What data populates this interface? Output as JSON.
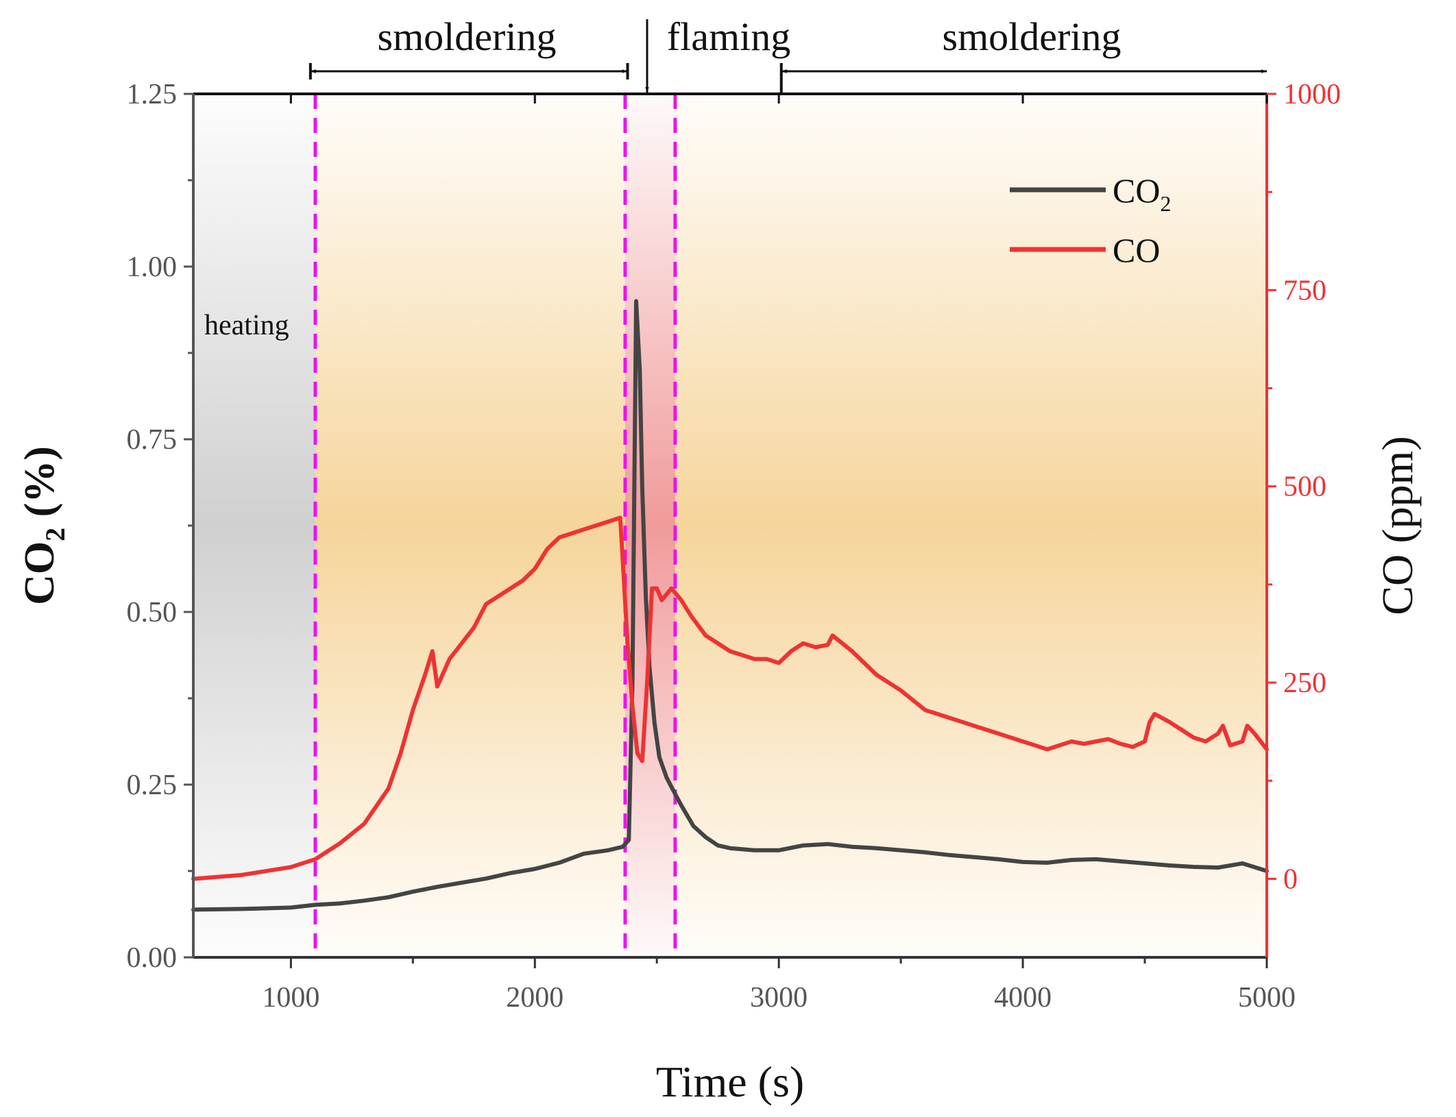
{
  "chart_data": {
    "type": "line",
    "xlabel": "Time (s)",
    "ylabel_left": {
      "base": "CO",
      "sub": "2",
      "unit": " (%)"
    },
    "ylabel_right": "CO (ppm)",
    "xlim": [
      600,
      5000
    ],
    "ylim_left": [
      0,
      1.25
    ],
    "ylim_right": [
      -100,
      1000
    ],
    "x_ticks": [
      1000,
      2000,
      3000,
      4000,
      5000
    ],
    "x_tick_labels": [
      "1000",
      "2000",
      "3000",
      "4000",
      "5000"
    ],
    "y_left_ticks": [
      0,
      0.25,
      0.5,
      0.75,
      1.0,
      1.25
    ],
    "y_left_tick_labels": [
      "0.00",
      "0.25",
      "0.50",
      "0.75",
      "1.00",
      "1.25"
    ],
    "y_right_ticks": [
      0,
      250,
      500,
      750,
      1000
    ],
    "y_right_tick_labels": [
      "0",
      "250",
      "500",
      "750",
      "1000"
    ],
    "regions": [
      {
        "name": "heating",
        "x_start": 600,
        "x_end": 1100,
        "color": "#d0d0d0"
      },
      {
        "name": "smoldering",
        "x_start": 1100,
        "x_end": 2370,
        "color": "#f5d090"
      },
      {
        "name": "flaming",
        "x_start": 2370,
        "x_end": 2575,
        "color": "#f09595"
      },
      {
        "name": "smoldering",
        "x_start": 2575,
        "x_end": 5000,
        "color": "#f5d090"
      }
    ],
    "dashed_lines_x": [
      1100,
      2370,
      2575
    ],
    "annotations": {
      "heating": "heating",
      "smoldering_1": "smoldering",
      "flaming": "flaming",
      "smoldering_2": "smoldering",
      "smoldering_1_arrow": [
        1080,
        2380
      ],
      "flaming_marker_x": 2460,
      "smoldering_2_arrow": [
        3010,
        5000
      ]
    },
    "legend": [
      {
        "name": "CO",
        "sub": "2",
        "color": "#444444"
      },
      {
        "name": "CO",
        "sub": "",
        "color": "#ee3333"
      }
    ],
    "series": [
      {
        "name": "CO2",
        "axis": "left",
        "color": "#444444",
        "x": [
          600,
          800,
          1000,
          1100,
          1200,
          1300,
          1400,
          1500,
          1600,
          1700,
          1800,
          1900,
          2000,
          2100,
          2200,
          2300,
          2360,
          2385,
          2400,
          2415,
          2430,
          2440,
          2455,
          2470,
          2490,
          2510,
          2540,
          2570,
          2600,
          2650,
          2700,
          2750,
          2800,
          2900,
          3000,
          3100,
          3200,
          3300,
          3400,
          3500,
          3600,
          3700,
          3800,
          3900,
          4000,
          4100,
          4200,
          4300,
          4400,
          4500,
          4600,
          4700,
          4800,
          4900,
          5000
        ],
        "values": [
          0.069,
          0.07,
          0.072,
          0.076,
          0.078,
          0.082,
          0.087,
          0.095,
          0.102,
          0.108,
          0.114,
          0.122,
          0.128,
          0.137,
          0.15,
          0.155,
          0.16,
          0.17,
          0.4,
          0.95,
          0.85,
          0.68,
          0.52,
          0.42,
          0.34,
          0.29,
          0.26,
          0.24,
          0.22,
          0.19,
          0.174,
          0.162,
          0.158,
          0.155,
          0.155,
          0.162,
          0.164,
          0.16,
          0.158,
          0.155,
          0.152,
          0.148,
          0.145,
          0.142,
          0.138,
          0.137,
          0.141,
          0.142,
          0.139,
          0.136,
          0.133,
          0.131,
          0.13,
          0.136,
          0.125
        ]
      },
      {
        "name": "CO",
        "axis": "right",
        "color": "#ee3333",
        "x": [
          600,
          800,
          1000,
          1100,
          1200,
          1300,
          1400,
          1450,
          1500,
          1550,
          1580,
          1600,
          1650,
          1700,
          1750,
          1800,
          1850,
          1900,
          1950,
          2000,
          2050,
          2100,
          2150,
          2200,
          2250,
          2300,
          2350,
          2380,
          2400,
          2420,
          2440,
          2460,
          2480,
          2500,
          2520,
          2560,
          2600,
          2640,
          2700,
          2750,
          2800,
          2850,
          2900,
          2950,
          3000,
          3050,
          3100,
          3150,
          3200,
          3220,
          3300,
          3400,
          3500,
          3600,
          3700,
          3800,
          3900,
          4000,
          4050,
          4100,
          4150,
          4200,
          4250,
          4300,
          4350,
          4400,
          4450,
          4500,
          4520,
          4540,
          4600,
          4650,
          4700,
          4750,
          4800,
          4820,
          4850,
          4900,
          4920,
          4950,
          5000
        ],
        "values": [
          0,
          5,
          15,
          25,
          45,
          70,
          115,
          160,
          215,
          260,
          290,
          245,
          280,
          300,
          320,
          350,
          360,
          370,
          380,
          395,
          420,
          435,
          440,
          445,
          450,
          455,
          460,
          300,
          220,
          160,
          150,
          250,
          370,
          370,
          355,
          370,
          355,
          335,
          310,
          300,
          290,
          285,
          280,
          280,
          275,
          290,
          300,
          295,
          298,
          310,
          290,
          260,
          240,
          215,
          205,
          195,
          185,
          175,
          170,
          165,
          170,
          175,
          172,
          175,
          178,
          172,
          168,
          175,
          200,
          210,
          200,
          190,
          180,
          175,
          185,
          195,
          170,
          175,
          195,
          185,
          165
        ]
      }
    ]
  }
}
